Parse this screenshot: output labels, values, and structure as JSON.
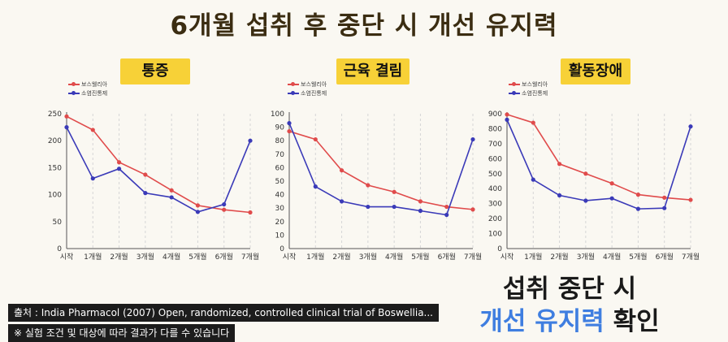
{
  "title": "6개월 섭취 후 중단 시 개선 유지력",
  "legend": {
    "boswellia": "보스웰리아",
    "nsaid": "소염진통제"
  },
  "colors": {
    "boswellia": "#e04b4b",
    "nsaid": "#3a3ab8",
    "label_bg": "#f7d137"
  },
  "bottom": {
    "line1": "섭취 중단 시",
    "highlight": "개선 유지력",
    "suffix": "확인"
  },
  "source": "출처 : India Pharmacol (2007) Open, randomized, controlled clinical trial of Boswellia...",
  "disclaimer": "※ 실험 조건 및 대상에 따라 결과가 다를 수 있습니다",
  "chart_data": [
    {
      "type": "line",
      "title": "통증",
      "categories": [
        "시작",
        "1개월",
        "2개월",
        "3개월",
        "4개월",
        "5개월",
        "6개월",
        "7개월"
      ],
      "ylim": [
        0,
        250
      ],
      "yticks": [
        0,
        50,
        100,
        150,
        200,
        250
      ],
      "series": [
        {
          "name": "보스웰리아",
          "values": [
            245,
            220,
            160,
            137,
            108,
            80,
            72,
            67
          ]
        },
        {
          "name": "소염진통제",
          "values": [
            225,
            130,
            148,
            103,
            95,
            68,
            82,
            200
          ]
        }
      ]
    },
    {
      "type": "line",
      "title": "근육 결림",
      "categories": [
        "시작",
        "1개월",
        "2개월",
        "3개월",
        "4개월",
        "5개월",
        "6개월",
        "7개월"
      ],
      "ylim": [
        0,
        100
      ],
      "yticks": [
        0,
        10,
        20,
        30,
        40,
        50,
        60,
        70,
        80,
        90,
        100
      ],
      "series": [
        {
          "name": "보스웰리아",
          "values": [
            87,
            81,
            58,
            47,
            42,
            35,
            31,
            29
          ]
        },
        {
          "name": "소염진통제",
          "values": [
            93,
            46,
            35,
            31,
            31,
            28,
            25,
            81
          ]
        }
      ]
    },
    {
      "type": "line",
      "title": "활동장애",
      "categories": [
        "시작",
        "1개월",
        "2개월",
        "3개월",
        "4개월",
        "5개월",
        "6개월",
        "7개월"
      ],
      "ylim": [
        0,
        900
      ],
      "yticks": [
        0,
        100,
        200,
        300,
        400,
        500,
        600,
        700,
        800,
        900
      ],
      "series": [
        {
          "name": "보스웰리아",
          "values": [
            895,
            840,
            565,
            500,
            435,
            360,
            340,
            325
          ]
        },
        {
          "name": "소염진통제",
          "values": [
            860,
            460,
            355,
            320,
            335,
            265,
            270,
            815
          ]
        }
      ]
    }
  ]
}
